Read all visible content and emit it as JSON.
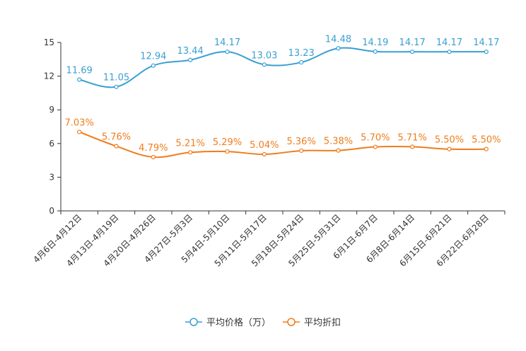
{
  "chart_data": {
    "type": "line",
    "title": "",
    "xlabel": "",
    "ylabel": "",
    "ylim": [
      0,
      15
    ],
    "yticks": [
      0,
      3,
      6,
      9,
      12,
      15
    ],
    "categories": [
      "4月6日-4月12日",
      "4月13日-4月19日",
      "4月20日-4月26日",
      "4月27日-5月3日",
      "5月4日-5月10日",
      "5月11日-5月17日",
      "5月18日-5月24日",
      "5月25日-5月31日",
      "6月1日-6月7日",
      "6月8日-6月14日",
      "6月15日-6月21日",
      "6月22日-6月28日"
    ],
    "series": [
      {
        "name": "平均价格（万）",
        "color": "#3a9fd4",
        "values": [
          11.69,
          11.05,
          12.94,
          13.44,
          14.17,
          13.03,
          13.23,
          14.48,
          14.19,
          14.17,
          14.17,
          14.17
        ],
        "labels": [
          "11.69",
          "11.05",
          "12.94",
          "13.44",
          "14.17",
          "13.03",
          "13.23",
          "14.48",
          "14.19",
          "14.17",
          "14.17",
          "14.17"
        ]
      },
      {
        "name": "平均折扣",
        "color": "#f07c1b",
        "values": [
          7.03,
          5.76,
          4.79,
          5.21,
          5.29,
          5.04,
          5.36,
          5.38,
          5.7,
          5.71,
          5.5,
          5.5
        ],
        "labels": [
          "7.03%",
          "5.76%",
          "4.79%",
          "5.21%",
          "5.29%",
          "5.04%",
          "5.36%",
          "5.38%",
          "5.70%",
          "5.71%",
          "5.50%",
          "5.50%"
        ]
      }
    ],
    "legend_position": "bottom-center"
  }
}
